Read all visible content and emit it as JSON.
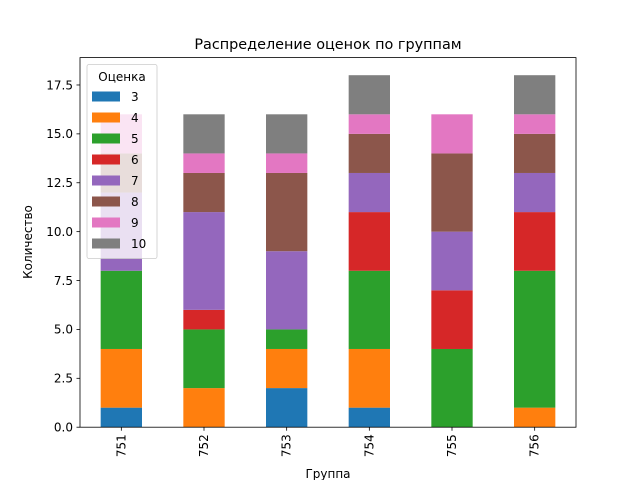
{
  "chart_data": {
    "type": "bar",
    "stacked": true,
    "title": "Распределение оценок по группам",
    "xlabel": "Группа",
    "ylabel": "Количество",
    "categories": [
      "751",
      "752",
      "753",
      "754",
      "755",
      "756"
    ],
    "ylim": [
      0,
      18.9
    ],
    "yticks": [
      "0.0",
      "2.5",
      "5.0",
      "7.5",
      "10.0",
      "12.5",
      "15.0",
      "17.5"
    ],
    "grid": false,
    "legend": {
      "title": "Оценка",
      "placement": "top-left"
    },
    "series": [
      {
        "name": "3",
        "color": "#1f77b4",
        "values": [
          1,
          0,
          2,
          1,
          0,
          0
        ]
      },
      {
        "name": "4",
        "color": "#ff7f0e",
        "values": [
          3,
          2,
          2,
          3,
          0,
          1
        ]
      },
      {
        "name": "5",
        "color": "#2ca02c",
        "values": [
          4,
          3,
          1,
          4,
          4,
          7
        ]
      },
      {
        "name": "6",
        "color": "#d62728",
        "values": [
          0,
          1,
          0,
          3,
          3,
          3
        ]
      },
      {
        "name": "7",
        "color": "#9467bd",
        "values": [
          4,
          5,
          4,
          2,
          3,
          2
        ]
      },
      {
        "name": "8",
        "color": "#8c564b",
        "values": [
          2,
          2,
          4,
          2,
          4,
          2
        ]
      },
      {
        "name": "9",
        "color": "#e377c2",
        "values": [
          2,
          1,
          1,
          1,
          2,
          1
        ]
      },
      {
        "name": "10",
        "color": "#7f7f7f",
        "values": [
          0,
          2,
          2,
          2,
          0,
          2
        ]
      }
    ]
  }
}
